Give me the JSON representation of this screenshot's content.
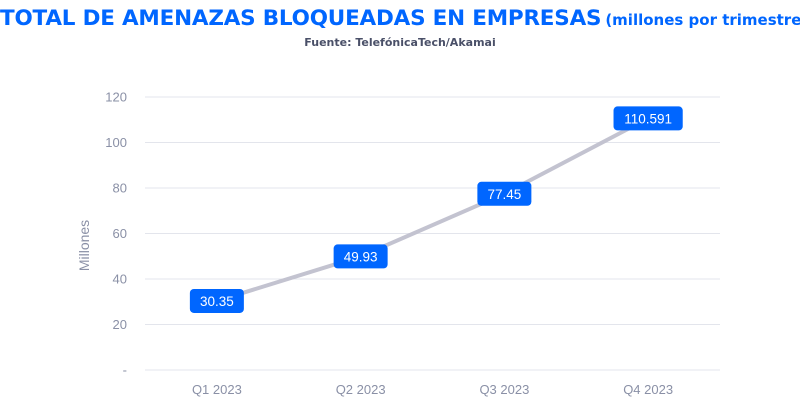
{
  "header": {
    "title": "TOTAL DE AMENAZAS BLOQUEADAS EN EMPRESAS",
    "subtitle": "(millones por trimestre)",
    "source": "Fuente: TelefónicaTech/Akamai"
  },
  "chart_data": {
    "type": "line",
    "title": "TOTAL DE AMENAZAS BLOQUEADAS EN EMPRESAS",
    "subtitle": "(millones por trimestre)",
    "source": "Fuente: TelefónicaTech/Akamai",
    "categories": [
      "Q1 2023",
      "Q2 2023",
      "Q3 2023",
      "Q4 2023"
    ],
    "series": [
      {
        "values": [
          30.35,
          49.93,
          77.45,
          110.591
        ]
      }
    ],
    "data_labels": [
      "30.35",
      "49.93",
      "77.45",
      "110.591"
    ],
    "xlabel": "",
    "ylabel": "Millones",
    "ylim": [
      0,
      120
    ],
    "yticks": [
      0,
      20,
      40,
      60,
      80,
      100,
      120
    ],
    "ytick_labels": [
      "-",
      "20",
      "40",
      "60",
      "80",
      "100",
      "120"
    ],
    "grid": true,
    "legend": "none",
    "colors": {
      "line": "#c3c3d0",
      "label_box": "#0066ff",
      "label_text": "#ffffff",
      "grid": "#e3e5ec",
      "title": "#0066ff",
      "axis_text": "#8a90a6"
    }
  }
}
